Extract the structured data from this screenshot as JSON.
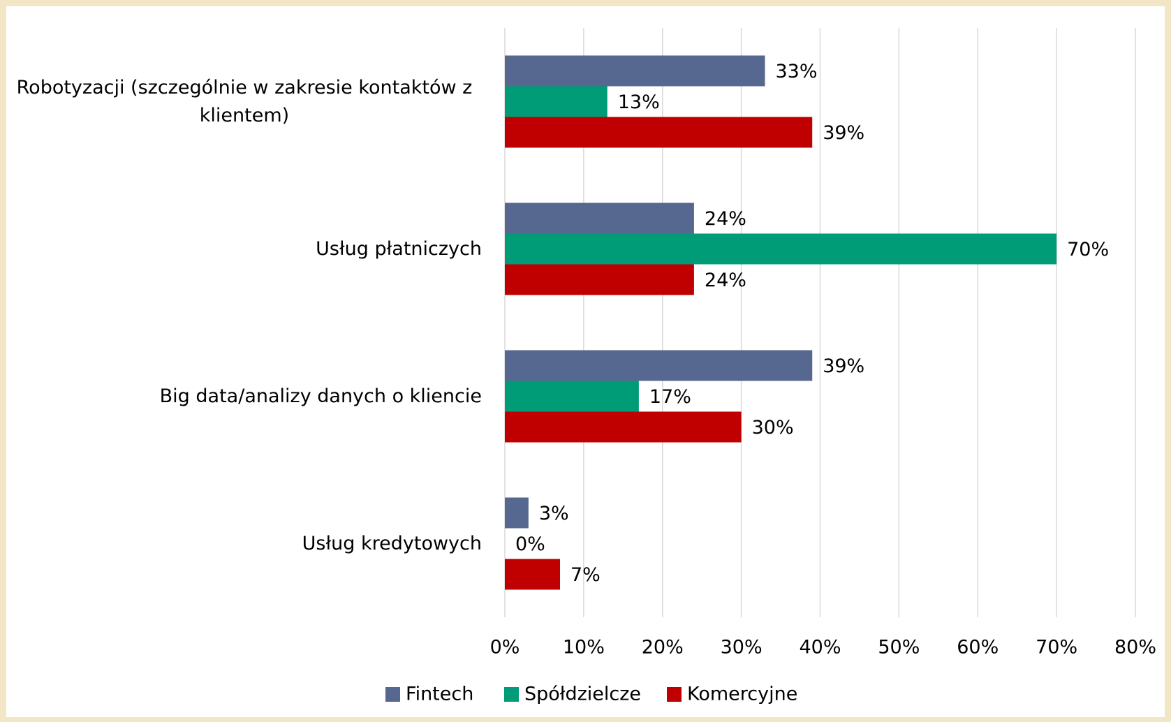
{
  "chart_data": {
    "type": "hbar",
    "categories": [
      "Robotyzacji (szczególnie w zakresie kontaktów z klientem)",
      "Usług płatniczych",
      "Big data/analizy danych o kliencie",
      "Usług kredytowych"
    ],
    "series": [
      {
        "name": "Fintech",
        "color": "#56688f",
        "values": [
          33,
          24,
          39,
          3
        ],
        "value_labels": [
          "33%",
          "24%",
          "39%",
          "3%"
        ]
      },
      {
        "name": "Spółdzielcze",
        "color": "#009b77",
        "values": [
          13,
          70,
          17,
          0
        ],
        "value_labels": [
          "13%",
          "70%",
          "17%",
          "0%"
        ]
      },
      {
        "name": "Komercyjne",
        "color": "#c00000",
        "values": [
          39,
          24,
          30,
          7
        ],
        "value_labels": [
          "39%",
          "24%",
          "30%",
          "7%"
        ]
      }
    ],
    "xlim": [
      0,
      80
    ],
    "xticks": [
      {
        "value": 0,
        "label": "0%"
      },
      {
        "value": 10,
        "label": "10%"
      },
      {
        "value": 20,
        "label": "20%"
      },
      {
        "value": 30,
        "label": "30%"
      },
      {
        "value": 40,
        "label": "40%"
      },
      {
        "value": 50,
        "label": "50%"
      },
      {
        "value": 60,
        "label": "60%"
      },
      {
        "value": 70,
        "label": "70%"
      },
      {
        "value": 80,
        "label": "80%"
      }
    ],
    "grid": true,
    "legend": "bottom"
  }
}
